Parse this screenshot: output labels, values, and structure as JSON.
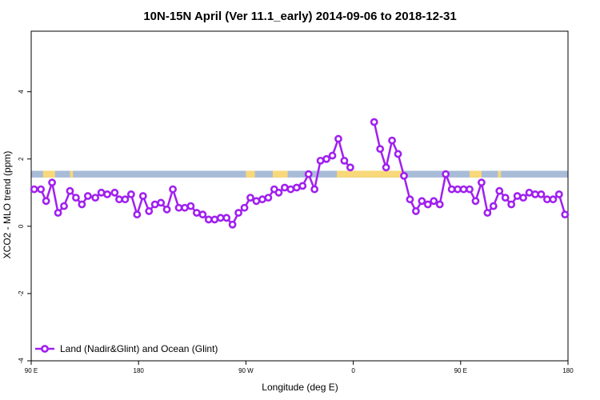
{
  "chart_data": {
    "type": "line",
    "title": "10N-15N April (Ver 11.1_early)   2014-09-06 to 2018-12-31",
    "xlabel": "Longitude (deg E)",
    "ylabel": "XCO2 - MLO trend (ppm)",
    "xlim": [
      0,
      360
    ],
    "ylim": [
      -4,
      5.8
    ],
    "x_ticks": [
      {
        "value": 0,
        "label": "90 E"
      },
      {
        "value": 72,
        "label": "180"
      },
      {
        "value": 144,
        "label": "90 W"
      },
      {
        "value": 216,
        "label": "0"
      },
      {
        "value": 288,
        "label": "90 E"
      },
      {
        "value": 360,
        "label": "180"
      }
    ],
    "y_ticks": [
      {
        "value": -4,
        "label": "-4"
      },
      {
        "value": -2,
        "label": "-2"
      },
      {
        "value": 0,
        "label": "0"
      },
      {
        "value": 2,
        "label": "2"
      },
      {
        "value": 4,
        "label": "4"
      }
    ],
    "legend": {
      "position": "bottom-left",
      "entries": [
        "Land (Nadir&Glint) and Ocean (Glint)"
      ]
    },
    "series": [
      {
        "name": "Land (Nadir&Glint) and Ocean (Glint)",
        "color": "#a020f0",
        "points": [
          [
            2,
            1.1
          ],
          [
            6.5,
            1.1
          ],
          [
            10,
            0.75
          ],
          [
            14,
            1.3
          ],
          [
            18,
            0.4
          ],
          [
            22,
            0.6
          ],
          [
            26,
            1.05
          ],
          [
            30,
            0.85
          ],
          [
            34,
            0.65
          ],
          [
            38,
            0.9
          ],
          [
            43,
            0.85
          ],
          [
            47,
            1.0
          ],
          [
            51,
            0.95
          ],
          [
            56,
            1.0
          ],
          [
            59,
            0.8
          ],
          [
            63,
            0.8
          ],
          [
            67,
            0.95
          ],
          [
            71,
            0.35
          ],
          [
            75,
            0.9
          ],
          [
            79,
            0.45
          ],
          [
            83,
            0.65
          ],
          [
            87,
            0.7
          ],
          [
            91,
            0.5
          ],
          [
            95,
            1.1
          ],
          [
            99,
            0.55
          ],
          [
            103,
            0.55
          ],
          [
            107,
            0.6
          ],
          [
            111,
            0.4
          ],
          [
            115,
            0.35
          ],
          [
            119,
            0.2
          ],
          [
            123,
            0.2
          ],
          [
            127,
            0.25
          ],
          [
            131,
            0.25
          ],
          [
            135,
            0.05
          ],
          [
            139,
            0.4
          ],
          [
            143,
            0.55
          ],
          [
            147,
            0.85
          ],
          [
            151,
            0.75
          ],
          [
            155,
            0.8
          ],
          [
            159,
            0.85
          ],
          [
            163,
            1.1
          ],
          [
            166,
            1.0
          ],
          [
            170,
            1.15
          ],
          [
            174,
            1.1
          ],
          [
            178,
            1.15
          ],
          [
            182,
            1.2
          ],
          [
            186,
            1.55
          ],
          [
            190,
            1.1
          ],
          [
            194,
            1.95
          ],
          [
            198,
            2.0
          ],
          [
            202,
            2.1
          ],
          [
            206,
            2.6
          ],
          [
            210,
            1.95
          ],
          [
            214,
            1.75
          ],
          null,
          [
            230,
            3.1
          ],
          [
            234,
            2.3
          ],
          [
            238,
            1.75
          ],
          [
            242,
            2.55
          ],
          [
            246,
            2.15
          ],
          [
            250,
            1.5
          ],
          [
            254,
            0.8
          ],
          [
            258,
            0.45
          ],
          [
            262,
            0.75
          ],
          [
            266,
            0.65
          ],
          [
            270,
            0.75
          ],
          [
            274,
            0.65
          ],
          [
            278,
            1.55
          ],
          [
            282,
            1.1
          ],
          [
            286,
            1.1
          ],
          [
            290,
            1.1
          ],
          [
            294,
            1.1
          ],
          [
            298,
            0.75
          ],
          [
            302,
            1.3
          ],
          [
            306,
            0.4
          ],
          [
            310,
            0.6
          ],
          [
            314,
            1.05
          ],
          [
            318,
            0.85
          ],
          [
            322,
            0.65
          ],
          [
            326,
            0.9
          ],
          [
            330,
            0.85
          ],
          [
            334,
            1.0
          ],
          [
            338,
            0.95
          ],
          [
            342,
            0.95
          ],
          [
            346,
            0.8
          ],
          [
            350,
            0.8
          ],
          [
            354,
            0.95
          ],
          [
            358,
            0.35
          ]
        ]
      }
    ],
    "surface_band": {
      "y_range": [
        1.45,
        1.65
      ],
      "ocean_color": "#a8bcd8",
      "land_color": "#f8d878",
      "land_segments": [
        [
          8,
          16
        ],
        [
          26,
          28
        ],
        [
          144,
          150
        ],
        [
          162,
          172
        ],
        [
          205,
          250
        ],
        [
          277,
          280
        ],
        [
          294,
          302
        ],
        [
          313,
          315
        ]
      ]
    },
    "grid": false
  }
}
